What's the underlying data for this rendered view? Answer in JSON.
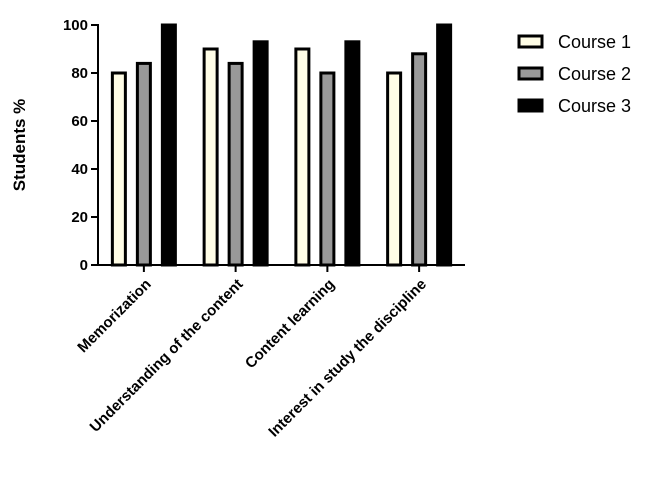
{
  "chart_data": {
    "type": "bar",
    "title": "",
    "xlabel": "",
    "ylabel": "Students %",
    "ylim": [
      0,
      100
    ],
    "yticks": [
      0,
      20,
      40,
      60,
      80,
      100
    ],
    "categories": [
      "Memorization",
      "Understanding of the content",
      "Content learning",
      "Interest in study the discipline"
    ],
    "series": [
      {
        "name": "Course 1",
        "values": [
          80,
          90,
          90,
          80
        ],
        "color": "#fffde6"
      },
      {
        "name": "Course 2",
        "values": [
          84,
          84,
          80,
          88
        ],
        "color": "#999999"
      },
      {
        "name": "Course 3",
        "values": [
          100,
          93,
          93,
          100
        ],
        "color": "#000000"
      }
    ],
    "grid": false,
    "legend_position": "right"
  }
}
